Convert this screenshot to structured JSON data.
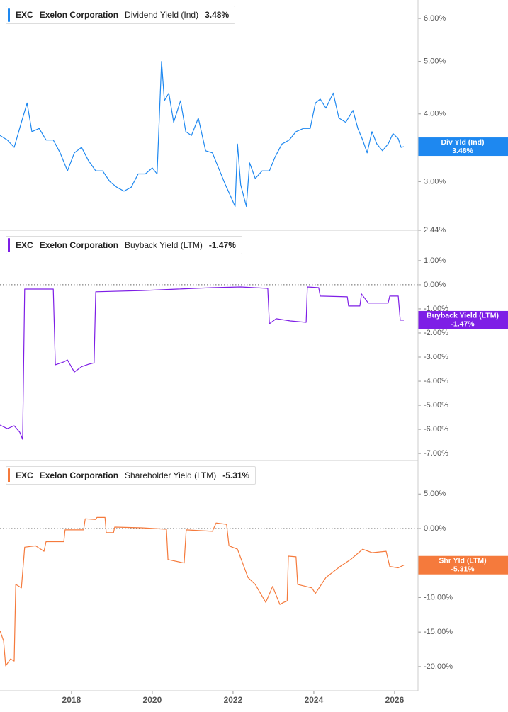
{
  "chart_data": [
    {
      "type": "line",
      "ticker": "EXC",
      "company": "Exelon Corporation",
      "metric": "Dividend Yield (Ind)",
      "value_label": "3.48%",
      "badge_label": "Div Yld (Ind)",
      "color": "#1e88f0",
      "log_scale": true,
      "zero_line": false,
      "xlim": [
        2016.23,
        2026.58
      ],
      "ylim": [
        2.44,
        6.49
      ],
      "yticks": [
        {
          "value": 6,
          "label": "6.00%"
        },
        {
          "value": 5,
          "label": "5.00%"
        },
        {
          "value": 4,
          "label": "4.00%"
        },
        {
          "value": 3,
          "label": "3.00%"
        },
        {
          "value": 2.44,
          "label": "2.44%"
        }
      ],
      "x": [
        2016.23,
        2016.41,
        2016.58,
        2016.76,
        2016.9,
        2017.02,
        2017.2,
        2017.37,
        2017.55,
        2017.72,
        2017.9,
        2018.07,
        2018.25,
        2018.42,
        2018.6,
        2018.77,
        2018.95,
        2019.12,
        2019.3,
        2019.48,
        2019.65,
        2019.83,
        2020.0,
        2020.12,
        2020.23,
        2020.3,
        2020.41,
        2020.53,
        2020.7,
        2020.83,
        2020.97,
        2021.14,
        2021.32,
        2021.49,
        2021.67,
        2021.81,
        2021.93,
        2022.05,
        2022.11,
        2022.19,
        2022.33,
        2022.41,
        2022.55,
        2022.72,
        2022.9,
        2023.04,
        2023.21,
        2023.39,
        2023.56,
        2023.74,
        2023.91,
        2024.04,
        2024.16,
        2024.3,
        2024.48,
        2024.62,
        2024.79,
        2024.97,
        2025.09,
        2025.21,
        2025.32,
        2025.44,
        2025.56,
        2025.7,
        2025.84,
        2025.96,
        2026.09,
        2026.16,
        2026.23
      ],
      "values": [
        3.65,
        3.58,
        3.47,
        3.86,
        4.19,
        3.71,
        3.76,
        3.58,
        3.58,
        3.39,
        3.14,
        3.39,
        3.47,
        3.28,
        3.14,
        3.14,
        3.0,
        2.93,
        2.88,
        2.93,
        3.1,
        3.1,
        3.18,
        3.1,
        5.0,
        4.23,
        4.37,
        3.86,
        4.23,
        3.71,
        3.65,
        3.93,
        3.42,
        3.39,
        3.14,
        2.96,
        2.83,
        2.7,
        3.52,
        2.96,
        2.7,
        3.25,
        3.04,
        3.14,
        3.14,
        3.33,
        3.52,
        3.58,
        3.71,
        3.76,
        3.76,
        4.19,
        4.26,
        4.1,
        4.37,
        3.93,
        3.86,
        4.06,
        3.76,
        3.58,
        3.39,
        3.71,
        3.52,
        3.42,
        3.52,
        3.68,
        3.6,
        3.47,
        3.48
      ]
    },
    {
      "type": "line",
      "ticker": "EXC",
      "company": "Exelon Corporation",
      "metric": "Buyback Yield (LTM)",
      "value_label": "-1.47%",
      "badge_label": "Buyback Yield (LTM)",
      "color": "#7e1ee6",
      "log_scale": false,
      "zero_line": true,
      "xlim": [
        2016.23,
        2026.58
      ],
      "ylim": [
        -7.29,
        2.26
      ],
      "yticks": [
        {
          "value": 1,
          "label": "1.00%"
        },
        {
          "value": 0,
          "label": "0.00%"
        },
        {
          "value": -1,
          "label": "-1.00%"
        },
        {
          "value": -2,
          "label": "-2.00%"
        },
        {
          "value": -3,
          "label": "-3.00%"
        },
        {
          "value": -4,
          "label": "-4.00%"
        },
        {
          "value": -5,
          "label": "-5.00%"
        },
        {
          "value": -6,
          "label": "-6.00%"
        },
        {
          "value": -7,
          "label": "-7.00%"
        }
      ],
      "x": [
        2016.23,
        2016.41,
        2016.58,
        2016.72,
        2016.79,
        2016.84,
        2017.55,
        2017.6,
        2017.81,
        2017.9,
        2018.07,
        2018.25,
        2018.42,
        2018.56,
        2018.6,
        2019.74,
        2020.62,
        2021.49,
        2022.19,
        2022.86,
        2022.9,
        2023.07,
        2023.42,
        2023.81,
        2023.84,
        2024.12,
        2024.16,
        2024.83,
        2024.86,
        2025.14,
        2025.18,
        2025.35,
        2025.84,
        2025.88,
        2026.09,
        2026.14,
        2026.23
      ],
      "values": [
        -5.82,
        -5.97,
        -5.85,
        -6.12,
        -6.41,
        -0.18,
        -0.18,
        -3.32,
        -3.2,
        -3.12,
        -3.62,
        -3.4,
        -3.3,
        -3.24,
        -0.29,
        -0.24,
        -0.18,
        -0.12,
        -0.09,
        -0.15,
        -1.62,
        -1.41,
        -1.5,
        -1.56,
        -0.09,
        -0.12,
        -0.47,
        -0.5,
        -0.88,
        -0.88,
        -0.38,
        -0.76,
        -0.76,
        -0.47,
        -0.47,
        -1.47,
        -1.47
      ]
    },
    {
      "type": "line",
      "ticker": "EXC",
      "company": "Exelon Corporation",
      "metric": "Shareholder Yield (LTM)",
      "value_label": "-5.31%",
      "badge_label": "Shr Yld (LTM)",
      "color": "#f57a3c",
      "log_scale": false,
      "zero_line": true,
      "xlim": [
        2016.23,
        2026.58
      ],
      "ylim": [
        -23.5,
        9.85
      ],
      "yticks": [
        {
          "value": 5,
          "label": "5.00%"
        },
        {
          "value": 0,
          "label": "0.00%"
        },
        {
          "value": -5,
          "label": "-5.00%"
        },
        {
          "value": -10,
          "label": "-10.00%"
        },
        {
          "value": -15,
          "label": "-15.00%"
        },
        {
          "value": -20,
          "label": "-20.00%"
        }
      ],
      "xticks": [
        2018,
        2020,
        2022,
        2024,
        2026
      ],
      "x": [
        2016.23,
        2016.32,
        2016.37,
        2016.49,
        2016.58,
        2016.62,
        2016.76,
        2016.84,
        2017.11,
        2017.32,
        2017.37,
        2017.81,
        2017.84,
        2018.3,
        2018.34,
        2018.6,
        2018.63,
        2018.83,
        2018.86,
        2019.04,
        2019.07,
        2019.74,
        2020.35,
        2020.39,
        2020.79,
        2020.84,
        2021.49,
        2021.58,
        2021.84,
        2021.9,
        2022.11,
        2022.37,
        2022.55,
        2022.81,
        2022.98,
        2023.16,
        2023.25,
        2023.34,
        2023.37,
        2023.56,
        2023.6,
        2023.95,
        2024.04,
        2024.3,
        2024.65,
        2024.91,
        2025.21,
        2025.44,
        2025.79,
        2025.88,
        2026.09,
        2026.23
      ],
      "values": [
        -14.8,
        -16.3,
        -19.9,
        -18.9,
        -19.2,
        -8.1,
        -8.6,
        -2.7,
        -2.5,
        -3.3,
        -1.9,
        -1.9,
        -0.2,
        -0.2,
        1.4,
        1.3,
        1.6,
        1.6,
        -0.6,
        -0.6,
        0.2,
        0.1,
        -0.1,
        -4.5,
        -5.0,
        -0.2,
        -0.4,
        0.8,
        0.6,
        -2.5,
        -3.0,
        -7.1,
        -8.1,
        -10.7,
        -8.4,
        -11.0,
        -10.7,
        -10.5,
        -4.0,
        -4.1,
        -8.1,
        -8.6,
        -9.4,
        -7.1,
        -5.5,
        -4.5,
        -3.0,
        -3.5,
        -3.3,
        -5.5,
        -5.7,
        -5.31
      ]
    }
  ]
}
